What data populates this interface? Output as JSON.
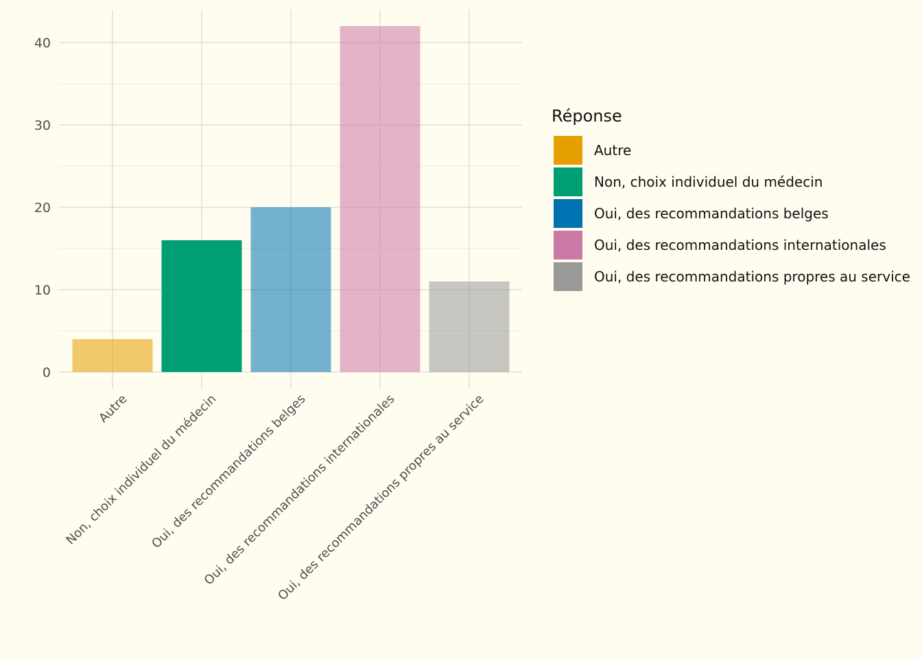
{
  "chart_data": {
    "type": "bar",
    "categories": [
      "Autre",
      "Non, choix individuel du médecin",
      "Oui, des recommandations belges",
      "Oui, des recommandations internationales",
      "Oui, des recommandations propres au service"
    ],
    "values": [
      4,
      16,
      20,
      42,
      11
    ],
    "colors": [
      "#E69F00",
      "#009E73",
      "#0072B2",
      "#CC79A7",
      "#999999"
    ],
    "bar_opacity": [
      0.55,
      1.0,
      0.55,
      0.55,
      0.55
    ],
    "ylim": [
      0,
      44
    ],
    "yticks": [
      0,
      10,
      20,
      30,
      40
    ],
    "ytick_labels": [
      "0",
      "10",
      "20",
      "30",
      "40"
    ],
    "grid": true,
    "legend": {
      "title": "Réponse",
      "placement": "right",
      "entries": [
        "Autre",
        "Non, choix individuel du médecin",
        "Oui, des recommandations belges",
        "Oui, des recommandations internationales",
        "Oui, des recommandations propres au service"
      ]
    }
  }
}
